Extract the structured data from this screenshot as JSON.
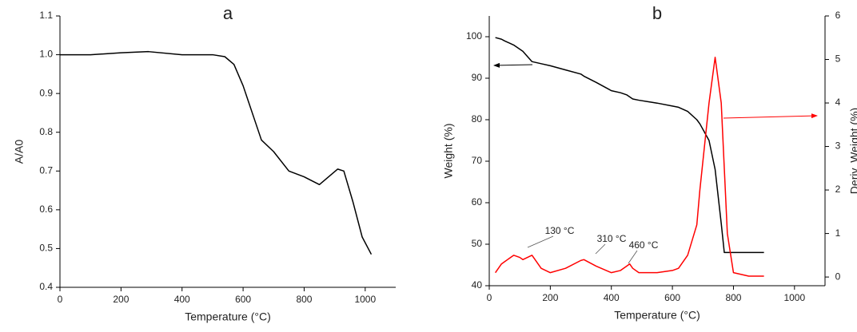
{
  "chart_data": [
    {
      "type": "line",
      "title": "a",
      "xlabel": "Temperature (°C)",
      "ylabel": "A/A0",
      "x": [
        0,
        100,
        200,
        290,
        400,
        500,
        540,
        570,
        600,
        630,
        660,
        700,
        750,
        800,
        850,
        880,
        910,
        930,
        960,
        990,
        1020
      ],
      "values": [
        1.0,
        1.0,
        1.005,
        1.008,
        1.0,
        1.0,
        0.995,
        0.975,
        0.92,
        0.85,
        0.78,
        0.75,
        0.7,
        0.685,
        0.665,
        0.685,
        0.705,
        0.7,
        0.62,
        0.53,
        0.485
      ],
      "color": "#000000",
      "xlim": [
        0,
        1100
      ],
      "xticks": [
        0,
        200,
        400,
        600,
        800,
        1000
      ],
      "ylim": [
        0.4,
        1.1
      ],
      "yticks": [
        0.4,
        0.5,
        0.6,
        0.7,
        0.8,
        0.9,
        {
          "value": 1,
          "label": "1.0"
        },
        1.1
      ]
    },
    {
      "type": "line",
      "title": "b",
      "xlabel": "Temperature (°C)",
      "ylabel": "Weight (%)",
      "y2label": "Deriv. Weight (%)",
      "x": [
        20,
        40,
        50,
        80,
        100,
        110,
        140,
        170,
        200,
        250,
        300,
        310,
        350,
        400,
        430,
        450,
        460,
        470,
        490,
        550,
        600,
        620,
        650,
        680,
        690,
        720,
        740,
        760,
        770,
        780,
        800,
        850,
        900
      ],
      "series": [
        {
          "color": "#000000",
          "values": [
            99.8,
            99.4,
            99,
            98,
            97,
            96.5,
            94,
            93.5,
            93,
            92,
            91,
            90.5,
            89,
            87,
            86.5,
            86,
            85.5,
            85,
            84.7,
            84,
            83.3,
            83,
            82,
            80,
            79,
            75,
            68,
            55,
            48,
            48,
            48,
            48,
            48
          ]
        },
        {
          "color": "#ff0000",
          "axis": "y2",
          "values": [
            0.1,
            0.3,
            0.35,
            0.5,
            0.45,
            0.4,
            0.5,
            0.2,
            0.1,
            0.2,
            0.38,
            0.4,
            0.25,
            0.1,
            0.15,
            0.25,
            0.3,
            0.2,
            0.1,
            0.1,
            0.15,
            0.2,
            0.5,
            1.2,
            2,
            4,
            5.05,
            4,
            2.5,
            1,
            0.1,
            0.02,
            0.02
          ]
        }
      ],
      "annotations": [
        "130 °C",
        "310 °C",
        "460 °C"
      ],
      "xlim": [
        0,
        1100
      ],
      "xticks": [
        0,
        200,
        400,
        600,
        800,
        1000
      ],
      "ylim": [
        40,
        105
      ],
      "yticks": [
        40,
        50,
        60,
        70,
        80,
        90,
        100
      ],
      "y2lim": [
        -0.2,
        6
      ],
      "y2ticks": [
        0,
        1,
        2,
        3,
        4,
        5,
        6
      ]
    }
  ]
}
